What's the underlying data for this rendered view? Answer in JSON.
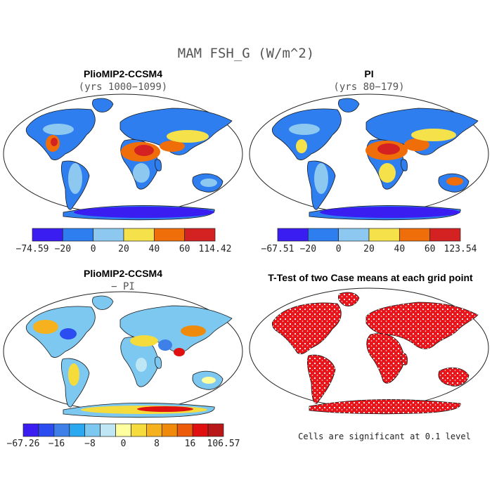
{
  "title": "MAM FSH_G (W/m^2)",
  "chart_data": [
    {
      "type": "heatmap",
      "title": "PlioMIP2-CCSM4",
      "subtitle": "(yrs 1000−1099)",
      "colorbar": {
        "colors": [
          "#3a1df0",
          "#2f7ef0",
          "#8cc8f0",
          "#f5e14a",
          "#f06e0a",
          "#d42222"
        ],
        "ticks": [
          "−74.59",
          "−20",
          "0",
          "20",
          "40",
          "60",
          "114.42"
        ]
      }
    },
    {
      "type": "heatmap",
      "title": "PI",
      "subtitle": "(yrs 80−179)",
      "colorbar": {
        "colors": [
          "#3a1df0",
          "#2f7ef0",
          "#8cc8f0",
          "#f5e14a",
          "#f06e0a",
          "#d42222"
        ],
        "ticks": [
          "−67.51",
          "−20",
          "0",
          "20",
          "40",
          "60",
          "123.54"
        ]
      }
    },
    {
      "type": "heatmap",
      "title": "PlioMIP2-CCSM4",
      "subtitle": "− PI",
      "colorbar": {
        "colors": [
          "#3a1df0",
          "#2a4cf0",
          "#3f7fe8",
          "#2aa8f0",
          "#7cc8f0",
          "#bfe6f5",
          "#ffffa0",
          "#f5dc3c",
          "#f5b21e",
          "#f08a0a",
          "#ec5a0a",
          "#e01010",
          "#b81818"
        ],
        "ticks": [
          "−67.26",
          "−16",
          "−8",
          "0",
          "8",
          "16",
          "106.57"
        ]
      }
    },
    {
      "type": "heatmap",
      "title": "T-Test of two Case means at each grid point",
      "note": "Cells are significant at 0.1 level",
      "significance_color": "#e8141a"
    }
  ]
}
